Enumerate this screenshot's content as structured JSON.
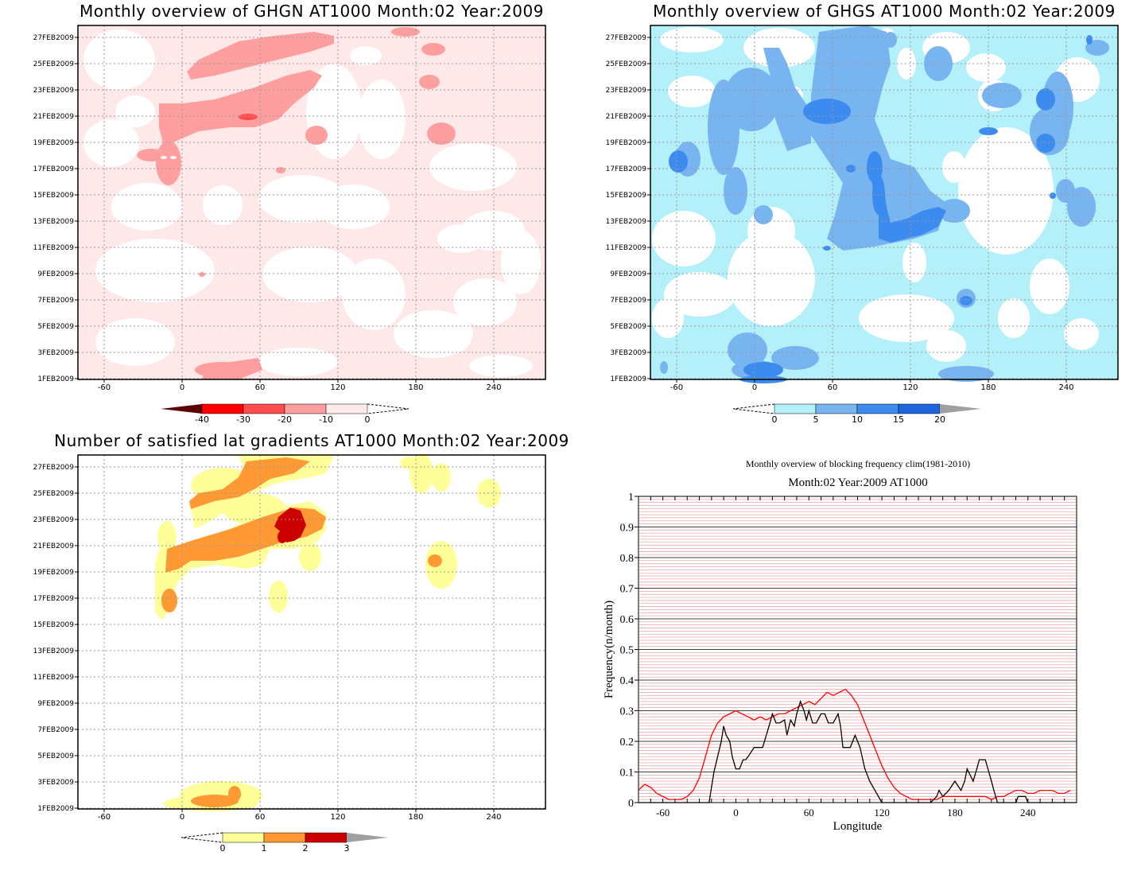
{
  "chart_data": [
    {
      "type": "heatmap",
      "title": "Monthly overview of GHGN AT1000 Month:02 Year:2009",
      "x_ticks": [
        "-60",
        "0",
        "60",
        "120",
        "180",
        "240"
      ],
      "y_ticks": [
        "1FEB2009",
        "3FEB2009",
        "5FEB2009",
        "7FEB2009",
        "9FEB2009",
        "11FEB2009",
        "13FEB2009",
        "15FEB2009",
        "17FEB2009",
        "19FEB2009",
        "21FEB2009",
        "23FEB2009",
        "25FEB2009",
        "27FEB2009"
      ],
      "colorbar": {
        "labels": [
          "-40",
          "-30",
          "-20",
          "-10",
          "0"
        ],
        "colors": [
          "#5a0000",
          "#ff0000",
          "#ff4d4d",
          "#ff9e9e",
          "#ffeaea",
          "#ffffff"
        ]
      },
      "grid": true
    },
    {
      "type": "heatmap",
      "title": "Monthly overview of GHGS AT1000 Month:02 Year:2009",
      "x_ticks": [
        "-60",
        "0",
        "60",
        "120",
        "180",
        "240"
      ],
      "y_ticks": [
        "1FEB2009",
        "3FEB2009",
        "5FEB2009",
        "7FEB2009",
        "9FEB2009",
        "11FEB2009",
        "13FEB2009",
        "15FEB2009",
        "17FEB2009",
        "19FEB2009",
        "21FEB2009",
        "23FEB2009",
        "25FEB2009",
        "27FEB2009"
      ],
      "colorbar": {
        "labels": [
          "0",
          "5",
          "10",
          "15",
          "20"
        ],
        "colors": [
          "#ffffff",
          "#b4f0fa",
          "#78b4f0",
          "#3c8cf0",
          "#1e64dc",
          "#a0a0a0"
        ]
      },
      "grid": true
    },
    {
      "type": "heatmap",
      "title": "Number of satisfied lat gradients AT1000 Month:02 Year:2009",
      "x_ticks": [
        "-60",
        "0",
        "60",
        "120",
        "180",
        "240"
      ],
      "y_ticks": [
        "1FEB2009",
        "3FEB2009",
        "5FEB2009",
        "7FEB2009",
        "9FEB2009",
        "11FEB2009",
        "13FEB2009",
        "15FEB2009",
        "17FEB2009",
        "19FEB2009",
        "21FEB2009",
        "23FEB2009",
        "25FEB2009",
        "27FEB2009"
      ],
      "colorbar": {
        "labels": [
          "0",
          "1",
          "2",
          "3"
        ],
        "colors": [
          "#ffffff",
          "#ffff99",
          "#ff9933",
          "#cc0000",
          "#a0a0a0"
        ]
      },
      "grid": true
    },
    {
      "type": "line",
      "title": "Monthly overview of blocking frequency clim(1981-2010)",
      "subtitle": "Month:02 Year:2009  AT1000",
      "xlabel": "Longitude",
      "ylabel": "Frequency(n/month)",
      "xlim": [
        -80,
        280
      ],
      "ylim": [
        0,
        1
      ],
      "x_ticks": [
        "-60",
        "0",
        "60",
        "120",
        "180",
        "240"
      ],
      "y_ticks": [
        "0",
        "0.1",
        "0.2",
        "0.3",
        "0.4",
        "0.5",
        "0.6",
        "0.7",
        "0.8",
        "0.9",
        "1"
      ],
      "colors": {
        "clim": "#ff0000",
        "month": "#000000"
      },
      "series": [
        {
          "key": "clim",
          "x": [
            -80,
            -75,
            -70,
            -65,
            -60,
            -55,
            -50,
            -45,
            -40,
            -35,
            -30,
            -25,
            -20,
            -15,
            -10,
            -5,
            0,
            5,
            10,
            15,
            20,
            25,
            30,
            35,
            40,
            45,
            50,
            55,
            60,
            65,
            70,
            75,
            80,
            85,
            90,
            95,
            100,
            105,
            110,
            115,
            120,
            125,
            130,
            135,
            140,
            145,
            150,
            155,
            160,
            165,
            170,
            175,
            180,
            185,
            190,
            195,
            200,
            205,
            210,
            215,
            220,
            225,
            230,
            235,
            240,
            245,
            250,
            255,
            260,
            265,
            270,
            275
          ],
          "y": [
            0.04,
            0.06,
            0.05,
            0.03,
            0.02,
            0.01,
            0.01,
            0.01,
            0.02,
            0.04,
            0.08,
            0.15,
            0.22,
            0.26,
            0.28,
            0.29,
            0.3,
            0.29,
            0.28,
            0.27,
            0.28,
            0.27,
            0.28,
            0.29,
            0.29,
            0.3,
            0.31,
            0.32,
            0.33,
            0.32,
            0.34,
            0.36,
            0.35,
            0.36,
            0.37,
            0.35,
            0.32,
            0.27,
            0.22,
            0.17,
            0.12,
            0.08,
            0.05,
            0.03,
            0.02,
            0.01,
            0.01,
            0.01,
            0.01,
            0.01,
            0.02,
            0.02,
            0.02,
            0.02,
            0.02,
            0.02,
            0.02,
            0.02,
            0.01,
            0.02,
            0.02,
            0.03,
            0.04,
            0.04,
            0.03,
            0.03,
            0.04,
            0.04,
            0.04,
            0.03,
            0.03,
            0.04
          ]
        },
        {
          "key": "month",
          "x": [
            -80,
            -25,
            -22,
            -20,
            -18,
            -15,
            -12,
            -10,
            -8,
            -5,
            -3,
            0,
            3,
            6,
            8,
            10,
            15,
            20,
            22,
            25,
            28,
            30,
            33,
            36,
            40,
            42,
            45,
            48,
            50,
            53,
            56,
            58,
            60,
            63,
            66,
            70,
            73,
            76,
            80,
            84,
            86,
            88,
            90,
            94,
            98,
            102,
            106,
            110,
            120,
            140,
            160,
            165,
            167,
            170,
            175,
            180,
            185,
            188,
            190,
            195,
            198,
            200,
            205,
            210,
            212,
            215,
            220,
            225,
            230,
            232,
            235,
            238,
            240,
            243,
            245,
            250,
            280
          ],
          "y": [
            0,
            0,
            0,
            0.05,
            0.1,
            0.15,
            0.2,
            0.25,
            0.22,
            0.2,
            0.15,
            0.11,
            0.11,
            0.14,
            0.14,
            0.15,
            0.18,
            0.18,
            0.18,
            0.22,
            0.26,
            0.29,
            0.26,
            0.26,
            0.27,
            0.22,
            0.27,
            0.25,
            0.29,
            0.33,
            0.3,
            0.27,
            0.3,
            0.26,
            0.26,
            0.29,
            0.29,
            0.26,
            0.26,
            0.29,
            0.25,
            0.18,
            0.18,
            0.18,
            0.22,
            0.18,
            0.11,
            0.07,
            0,
            0,
            0,
            0.02,
            0.04,
            0.02,
            0.04,
            0.07,
            0.04,
            0.07,
            0.11,
            0.07,
            0.11,
            0.14,
            0.14,
            0.07,
            0.04,
            0,
            0,
            0,
            0,
            0.02,
            0.02,
            0.02,
            0,
            0,
            0,
            0,
            0
          ]
        }
      ]
    }
  ]
}
